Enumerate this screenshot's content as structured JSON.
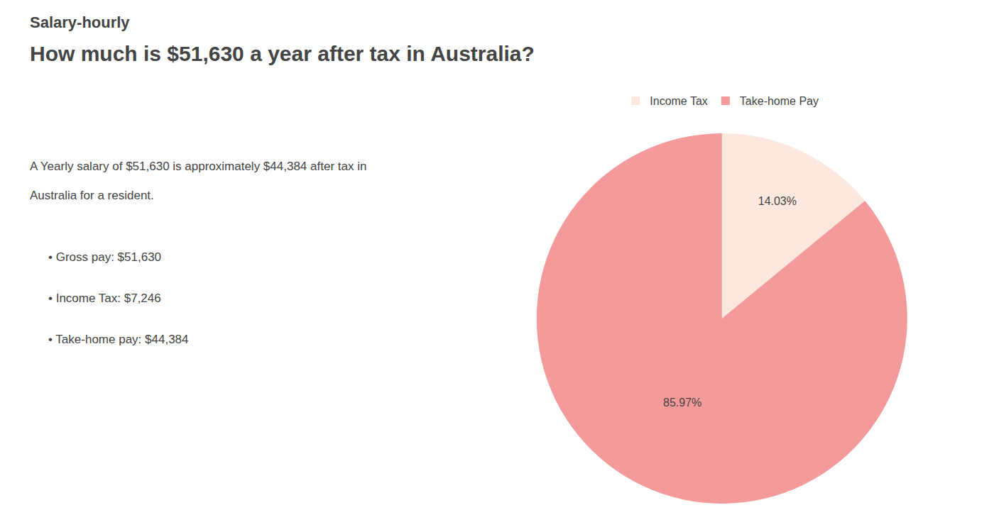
{
  "chart_data": {
    "type": "pie",
    "title": "How much is $51,630 a year after tax in Australia?",
    "categories": [
      "Income Tax",
      "Take-home Pay"
    ],
    "values": [
      14.03,
      85.97
    ],
    "value_labels": [
      "14.03%",
      "85.97%"
    ],
    "data_labels": true,
    "colors": [
      "#fce8df",
      "#f49a9a"
    ],
    "legend": "top",
    "annotations": [
      "Salary-hourly",
      "A Yearly salary of $51,630 is approximately $44,384 after tax in",
      "Australia for a resident.",
      "• Gross pay: $51,630",
      "• Income Tax: $7,246",
      "• Take-home pay: $44,384"
    ]
  }
}
